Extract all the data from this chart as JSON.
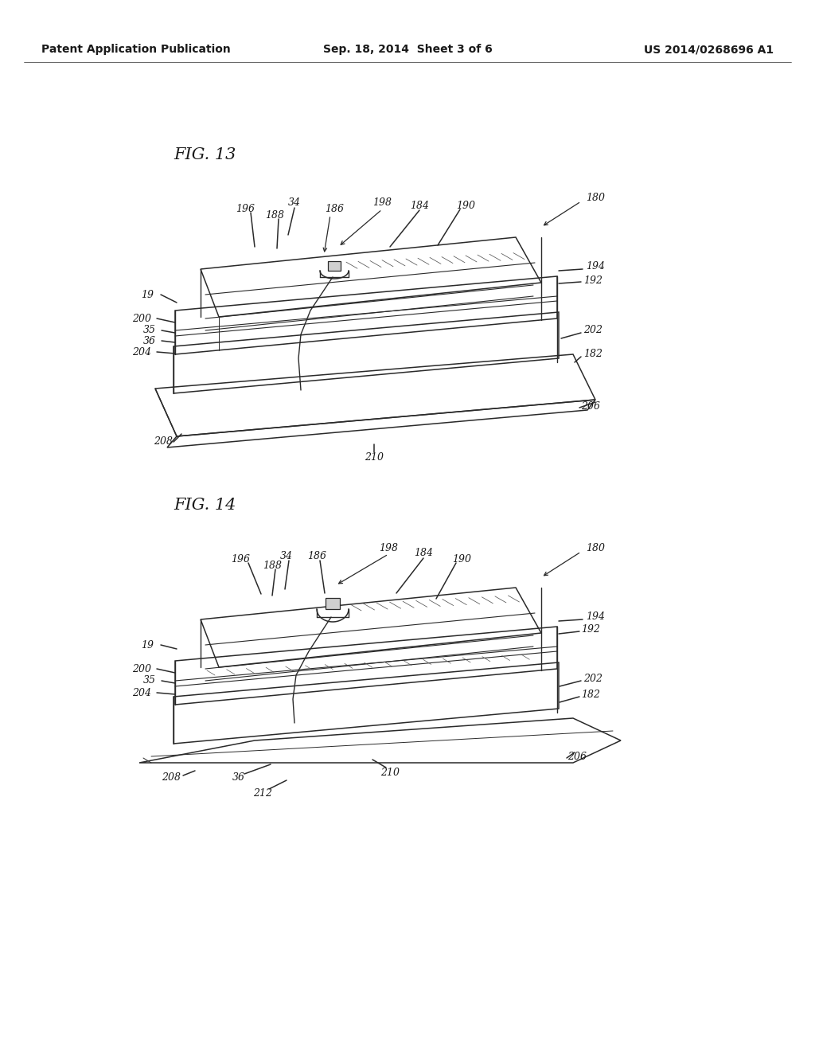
{
  "background_color": "#ffffff",
  "page_width": 10.24,
  "page_height": 13.2,
  "header": {
    "left": "Patent Application Publication",
    "center": "Sep. 18, 2014  Sheet 3 of 6",
    "right": "US 2014/0268696 A1",
    "fontsize": 10
  }
}
